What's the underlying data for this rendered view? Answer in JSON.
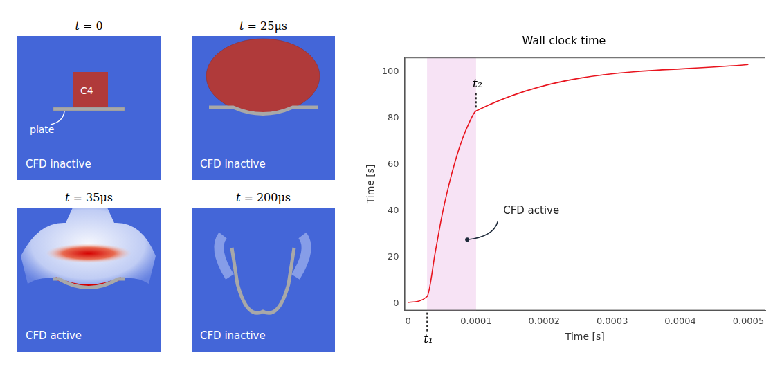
{
  "chart_data": {
    "type": "line",
    "title": "Wall clock time",
    "x_label": "Time [s]",
    "y_label": "Time [s]",
    "x": [
      0,
      2.8e-05,
      4e-05,
      5e-05,
      6e-05,
      7e-05,
      8e-05,
      9e-05,
      0.0001,
      0.0005
    ],
    "values": [
      0.5,
      3,
      22,
      38,
      51,
      62,
      71,
      78,
      83,
      103
    ],
    "color": "#e8141e",
    "xlim": [
      -5e-06,
      0.000525
    ],
    "xticks": [
      0,
      0.0001,
      0.0002,
      0.0003,
      0.0004,
      0.0005
    ],
    "ylim": [
      -3,
      106
    ],
    "yticks": [
      0,
      20,
      40,
      60,
      80,
      100
    ],
    "grid": false,
    "active_interval": [
      2.8e-05,
      0.0001
    ],
    "annotations": [
      {
        "text": "CFD active"
      },
      {
        "text": "t₁",
        "x": 2.8e-05
      },
      {
        "text": "t₂",
        "x": 0.0001
      }
    ]
  },
  "panels": [
    {
      "title": "t = 0",
      "status": "CFD inactive",
      "labels": [
        "C4",
        "plate"
      ]
    },
    {
      "title": "t = 25μs",
      "status": "CFD inactive"
    },
    {
      "title": "t = 35μs",
      "status": "CFD active"
    },
    {
      "title": "t = 200μs",
      "status": "CFD inactive"
    }
  ]
}
